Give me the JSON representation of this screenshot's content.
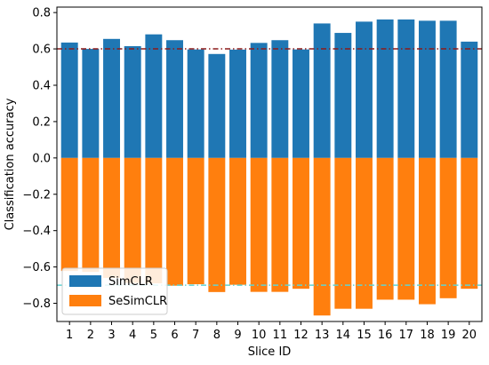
{
  "chart_data": {
    "type": "bar",
    "xlabel": "Slice ID",
    "ylabel": "Classification accuracy",
    "categories": [
      "1",
      "2",
      "3",
      "4",
      "5",
      "6",
      "7",
      "8",
      "9",
      "10",
      "11",
      "12",
      "13",
      "14",
      "15",
      "16",
      "17",
      "18",
      "19",
      "20"
    ],
    "series": [
      {
        "name": "SimCLR",
        "color": "#1f77b4",
        "values": [
          0.635,
          0.6,
          0.655,
          0.615,
          0.68,
          0.648,
          0.597,
          0.572,
          0.596,
          0.633,
          0.648,
          0.597,
          0.74,
          0.688,
          0.75,
          0.762,
          0.762,
          0.755,
          0.755,
          0.64
        ]
      },
      {
        "name": "SeSimCLR",
        "color": "#ff7f0e",
        "values": [
          -0.622,
          -0.627,
          -0.66,
          -0.688,
          -0.69,
          -0.703,
          -0.695,
          -0.738,
          -0.698,
          -0.737,
          -0.737,
          -0.72,
          -0.867,
          -0.83,
          -0.83,
          -0.78,
          -0.78,
          -0.805,
          -0.772,
          -0.72
        ]
      }
    ],
    "ylim": [
      -0.9,
      0.83
    ],
    "yticks": [
      0.8,
      0.6,
      0.4,
      0.2,
      0.0,
      -0.2,
      -0.4,
      -0.6,
      -0.8
    ],
    "ytick_labels": [
      "0.8",
      "0.6",
      "0.4",
      "0.2",
      "0.0",
      "−0.2",
      "−0.4",
      "−0.6",
      "−0.8"
    ],
    "reference_lines": [
      {
        "y": 0.6,
        "style": "dash-dot",
        "color": "#8b1a1a"
      },
      {
        "y": -0.7,
        "style": "dash-dot",
        "color": "#5fd3d3"
      }
    ],
    "legend_position": "lower-left",
    "grid": false
  }
}
